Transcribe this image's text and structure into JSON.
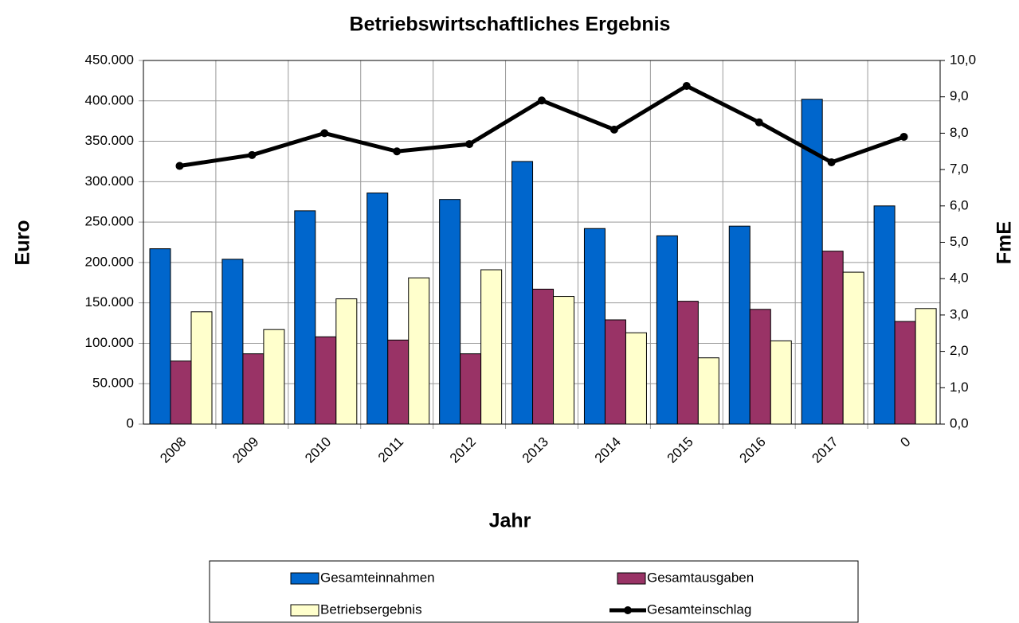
{
  "chart_data": {
    "type": "bar",
    "title": "Betriebswirtschaftliches Ergebnis",
    "xlabel": "Jahr",
    "ylabel": "Euro",
    "y2label": "FmE",
    "categories": [
      "2008",
      "2009",
      "2010",
      "2011",
      "2012",
      "2013",
      "2014",
      "2015",
      "2016",
      "2017",
      "0"
    ],
    "series": [
      {
        "name": "Gesamteinnahmen",
        "type": "bar",
        "color": "#0066cc",
        "values": [
          217000,
          204000,
          264000,
          286000,
          278000,
          325000,
          242000,
          233000,
          245000,
          402000,
          270000
        ]
      },
      {
        "name": "Gesamtausgaben",
        "type": "bar",
        "color": "#993366",
        "values": [
          78000,
          87000,
          108000,
          104000,
          87000,
          167000,
          129000,
          152000,
          142000,
          214000,
          127000
        ]
      },
      {
        "name": "Betriebsergebnis",
        "type": "bar",
        "color": "#ffffcc",
        "values": [
          139000,
          117000,
          155000,
          181000,
          191000,
          158000,
          113000,
          82000,
          103000,
          188000,
          143000
        ]
      },
      {
        "name": "Gesamteinschlag",
        "type": "line",
        "axis": "y2",
        "color": "#000000",
        "values": [
          7.1,
          7.4,
          8.0,
          7.5,
          7.7,
          8.9,
          8.1,
          9.3,
          8.3,
          7.2,
          7.9
        ]
      }
    ],
    "ylim": [
      0,
      450000
    ],
    "yticks": [
      0,
      {
        "value": 50000,
        "label": "50.000"
      },
      {
        "value": 100000,
        "label": "100.000"
      },
      {
        "value": 150000,
        "label": "150.000"
      },
      {
        "value": 200000,
        "label": "200.000"
      },
      {
        "value": 250000,
        "label": "250.000"
      },
      {
        "value": 300000,
        "label": "300.000"
      },
      {
        "value": 350000,
        "label": "350.000"
      },
      {
        "value": 400000,
        "label": "400.000"
      },
      {
        "value": 450000,
        "label": "450.000"
      }
    ],
    "y2lim": [
      0,
      10
    ],
    "y2ticks": [
      {
        "value": 0,
        "label": "0,0"
      },
      {
        "value": 1,
        "label": "1,0"
      },
      {
        "value": 2,
        "label": "2,0"
      },
      {
        "value": 3,
        "label": "3,0"
      },
      {
        "value": 4,
        "label": "4,0"
      },
      {
        "value": 5,
        "label": "5,0"
      },
      {
        "value": 6,
        "label": "6,0"
      },
      {
        "value": 7,
        "label": "7,0"
      },
      {
        "value": 8,
        "label": "8,0"
      },
      {
        "value": 9,
        "label": "9,0"
      },
      {
        "value": 10,
        "label": "10,0"
      }
    ],
    "grid": true,
    "legend": "bottom"
  }
}
